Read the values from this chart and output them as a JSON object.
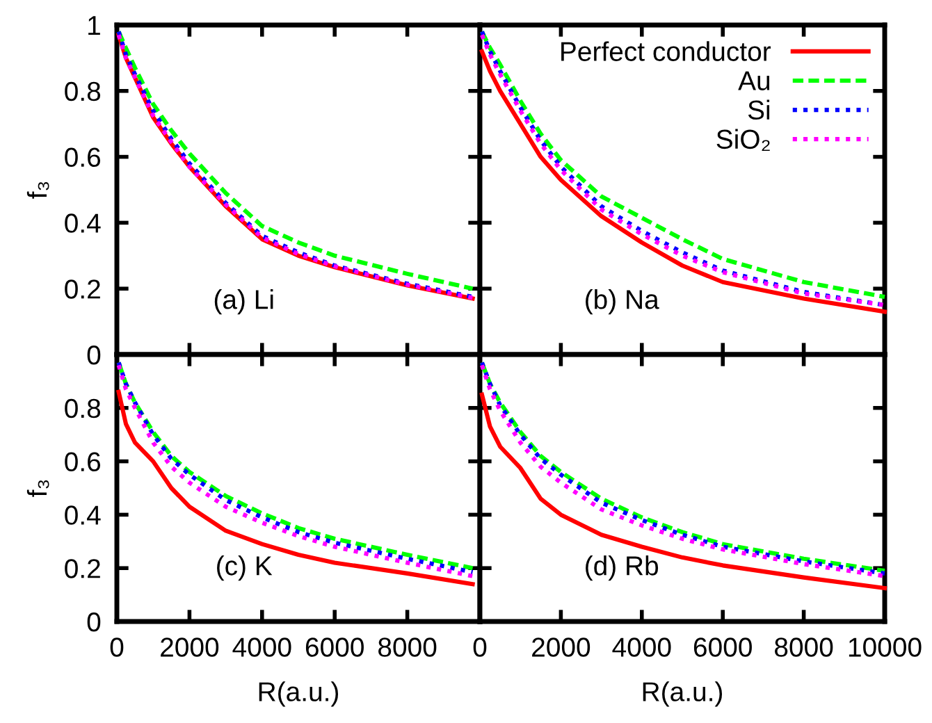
{
  "chart_data": [
    {
      "type": "line",
      "ylabel": "f₃",
      "annotations": [
        "(a) Li"
      ],
      "xlim": [
        0,
        10000
      ],
      "ylim": [
        0,
        1
      ],
      "xticks": [
        0,
        2000,
        4000,
        6000,
        8000,
        10000
      ],
      "yticks": [
        0,
        0.2,
        0.4,
        0.6,
        0.8,
        1
      ],
      "tick_labels": "y",
      "grid": false,
      "legend": false,
      "x": [
        50,
        250,
        500,
        1000,
        1500,
        2000,
        3000,
        4000,
        5000,
        6000,
        8000,
        9800
      ],
      "series": [
        {
          "color": "#ff0000",
          "line_style": "solid",
          "values": [
            0.97,
            0.9,
            0.84,
            0.72,
            0.64,
            0.57,
            0.45,
            0.35,
            0.3,
            0.265,
            0.21,
            0.17
          ]
        },
        {
          "color": "#00ff00",
          "line_style": "dashed",
          "values": [
            0.98,
            0.93,
            0.87,
            0.76,
            0.68,
            0.61,
            0.49,
            0.39,
            0.34,
            0.3,
            0.245,
            0.2
          ]
        },
        {
          "color": "#0000ff",
          "line_style": "dotted",
          "values": [
            0.98,
            0.91,
            0.85,
            0.74,
            0.655,
            0.58,
            0.46,
            0.36,
            0.31,
            0.27,
            0.215,
            0.175
          ]
        },
        {
          "color": "#ff00ff",
          "line_style": "dotted",
          "values": [
            0.97,
            0.9,
            0.84,
            0.725,
            0.645,
            0.57,
            0.455,
            0.355,
            0.305,
            0.268,
            0.212,
            0.172
          ]
        }
      ]
    },
    {
      "type": "line",
      "annotations": [
        "(b) Na"
      ],
      "xlim": [
        0,
        10000
      ],
      "ylim": [
        0,
        1
      ],
      "xticks": [
        0,
        2000,
        4000,
        6000,
        8000,
        10000
      ],
      "yticks": [
        0,
        0.2,
        0.4,
        0.6,
        0.8,
        1
      ],
      "tick_labels": false,
      "grid": false,
      "legend": "top right",
      "x": [
        50,
        250,
        500,
        1000,
        1500,
        2000,
        3000,
        4000,
        5000,
        6000,
        8000,
        10000
      ],
      "series": [
        {
          "name": "Perfect conductor",
          "color": "#ff0000",
          "line_style": "solid",
          "values": [
            0.92,
            0.86,
            0.8,
            0.7,
            0.6,
            0.53,
            0.42,
            0.34,
            0.27,
            0.22,
            0.17,
            0.13
          ]
        },
        {
          "name": "Au",
          "color": "#00ff00",
          "line_style": "dashed",
          "values": [
            0.98,
            0.93,
            0.88,
            0.77,
            0.67,
            0.59,
            0.48,
            0.415,
            0.35,
            0.29,
            0.22,
            0.175
          ]
        },
        {
          "name": "Si",
          "color": "#0000ff",
          "line_style": "dotted",
          "values": [
            0.98,
            0.92,
            0.86,
            0.75,
            0.65,
            0.57,
            0.45,
            0.375,
            0.31,
            0.255,
            0.19,
            0.15
          ]
        },
        {
          "name": "SiO₂",
          "color": "#ff00ff",
          "line_style": "dotted",
          "values": [
            0.97,
            0.91,
            0.85,
            0.74,
            0.64,
            0.56,
            0.44,
            0.365,
            0.3,
            0.25,
            0.185,
            0.15
          ]
        }
      ]
    },
    {
      "type": "line",
      "ylabel": "f₃",
      "xlabel": "R(a.u.)",
      "annotations": [
        "(c) K"
      ],
      "xlim": [
        0,
        10000
      ],
      "ylim": [
        0,
        1
      ],
      "xticks": [
        0,
        2000,
        4000,
        6000,
        8000
      ],
      "yticks": [
        0,
        0.2,
        0.4,
        0.6,
        0.8,
        {
          "value": 1,
          "label": null
        }
      ],
      "grid": false,
      "legend": false,
      "x": [
        50,
        250,
        500,
        1000,
        1500,
        2000,
        3000,
        4000,
        5000,
        6000,
        8000,
        9800
      ],
      "series": [
        {
          "color": "#ff0000",
          "line_style": "solid",
          "values": [
            0.86,
            0.74,
            0.67,
            0.6,
            0.5,
            0.43,
            0.34,
            0.29,
            0.25,
            0.22,
            0.18,
            0.14
          ]
        },
        {
          "color": "#00ff00",
          "line_style": "dashed",
          "values": [
            0.97,
            0.89,
            0.82,
            0.71,
            0.62,
            0.56,
            0.47,
            0.405,
            0.35,
            0.31,
            0.25,
            0.2
          ]
        },
        {
          "color": "#0000ff",
          "line_style": "dotted",
          "values": [
            0.97,
            0.89,
            0.82,
            0.7,
            0.61,
            0.55,
            0.455,
            0.39,
            0.335,
            0.295,
            0.235,
            0.185
          ]
        },
        {
          "color": "#ff00ff",
          "line_style": "dotted",
          "values": [
            0.96,
            0.87,
            0.8,
            0.67,
            0.58,
            0.52,
            0.43,
            0.37,
            0.32,
            0.28,
            0.22,
            0.17
          ]
        }
      ]
    },
    {
      "type": "line",
      "xlabel": "R(a.u.)",
      "annotations": [
        "(d) Rb"
      ],
      "xlim": [
        0,
        10000
      ],
      "ylim": [
        0,
        1
      ],
      "xticks": [
        0,
        2000,
        4000,
        6000,
        8000,
        10000
      ],
      "yticks": [
        0,
        0.2,
        0.4,
        0.6,
        0.8,
        1
      ],
      "tick_labels": "x",
      "grid": false,
      "legend": false,
      "x": [
        50,
        250,
        500,
        1000,
        1500,
        2000,
        3000,
        4000,
        5000,
        6000,
        8000,
        10000
      ],
      "series": [
        {
          "color": "#ff0000",
          "line_style": "solid",
          "values": [
            0.85,
            0.73,
            0.655,
            0.575,
            0.46,
            0.4,
            0.325,
            0.28,
            0.24,
            0.21,
            0.165,
            0.125
          ]
        },
        {
          "color": "#00ff00",
          "line_style": "dashed",
          "values": [
            0.97,
            0.89,
            0.82,
            0.71,
            0.62,
            0.56,
            0.46,
            0.39,
            0.335,
            0.29,
            0.235,
            0.19
          ]
        },
        {
          "color": "#0000ff",
          "line_style": "dotted",
          "values": [
            0.97,
            0.89,
            0.81,
            0.7,
            0.61,
            0.55,
            0.445,
            0.38,
            0.325,
            0.28,
            0.225,
            0.18
          ]
        },
        {
          "color": "#ff00ff",
          "line_style": "dotted",
          "values": [
            0.96,
            0.87,
            0.79,
            0.67,
            0.58,
            0.52,
            0.42,
            0.36,
            0.31,
            0.27,
            0.215,
            0.17
          ]
        }
      ]
    }
  ]
}
